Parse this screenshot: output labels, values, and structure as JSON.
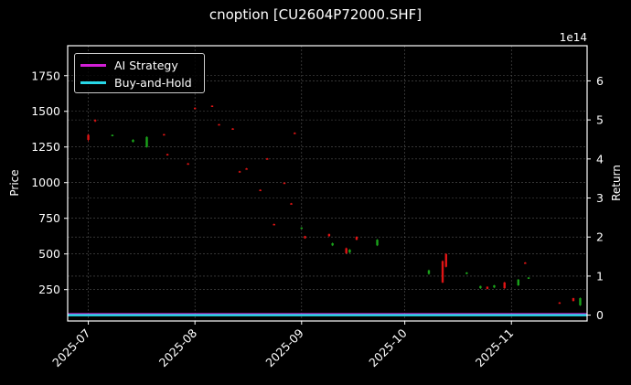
{
  "title": "cnoption [CU2604P72000.SHF]",
  "colors": {
    "background": "#000000",
    "ai_strategy": "#d21fd6",
    "buy_and_hold": "#28d8e8",
    "up_candle": "#1aa31a",
    "down_candle": "#e01414",
    "grid": "#555555",
    "frame": "#ffffff"
  },
  "legend": {
    "items": [
      {
        "label": "AI Strategy",
        "color": "#d21fd6"
      },
      {
        "label": "Buy-and-Hold",
        "color": "#28d8e8"
      }
    ]
  },
  "axes": {
    "left_label": "Price",
    "right_label": "Return",
    "right_exponent": "1e14"
  },
  "chart_data": {
    "type": "candlestick+line",
    "title": "cnoption [CU2604P72000.SHF]",
    "xlabel": "",
    "ylabel": "Price",
    "y2label": "Return",
    "y2_offset_text": "1e14",
    "x_tick_labels": [
      "2025-07",
      "2025-08",
      "2025-09",
      "2025-10",
      "2025-11"
    ],
    "y_ticks": [
      250,
      500,
      750,
      1000,
      1250,
      1500,
      1750
    ],
    "y2_ticks": [
      0,
      1,
      2,
      3,
      4,
      5,
      6
    ],
    "ylim": [
      30,
      1960
    ],
    "y2lim": [
      -0.15,
      6.9
    ],
    "grid": true,
    "legend_position": "upper left",
    "candles": [
      {
        "date": "2025-07-01",
        "open": 1335,
        "close": 1300,
        "high": 1340,
        "low": 1290,
        "dir": "down"
      },
      {
        "date": "2025-07-03",
        "open": 1440,
        "close": 1430,
        "high": 1445,
        "low": 1425,
        "dir": "down"
      },
      {
        "date": "2025-07-08",
        "open": 1330,
        "close": 1335,
        "high": 1338,
        "low": 1328,
        "dir": "up"
      },
      {
        "date": "2025-07-14",
        "open": 1285,
        "close": 1300,
        "high": 1305,
        "low": 1282,
        "dir": "up"
      },
      {
        "date": "2025-07-18",
        "open": 1250,
        "close": 1320,
        "high": 1325,
        "low": 1245,
        "dir": "up"
      },
      {
        "date": "2025-07-23",
        "open": 1340,
        "close": 1335,
        "high": 1342,
        "low": 1332,
        "dir": "down"
      },
      {
        "date": "2025-07-24",
        "open": 1200,
        "close": 1195,
        "high": 1203,
        "low": 1192,
        "dir": "down"
      },
      {
        "date": "2025-07-30",
        "open": 1135,
        "close": 1130,
        "high": 1138,
        "low": 1128,
        "dir": "down"
      },
      {
        "date": "2025-08-01",
        "open": 1525,
        "close": 1520,
        "high": 1528,
        "low": 1517,
        "dir": "down"
      },
      {
        "date": "2025-08-06",
        "open": 1540,
        "close": 1535,
        "high": 1542,
        "low": 1532,
        "dir": "down"
      },
      {
        "date": "2025-08-08",
        "open": 1410,
        "close": 1405,
        "high": 1412,
        "low": 1402,
        "dir": "down"
      },
      {
        "date": "2025-08-12",
        "open": 1380,
        "close": 1375,
        "high": 1382,
        "low": 1372,
        "dir": "down"
      },
      {
        "date": "2025-08-14",
        "open": 1080,
        "close": 1075,
        "high": 1083,
        "low": 1072,
        "dir": "down"
      },
      {
        "date": "2025-08-16",
        "open": 1100,
        "close": 1095,
        "high": 1103,
        "low": 1092,
        "dir": "down"
      },
      {
        "date": "2025-08-20",
        "open": 950,
        "close": 945,
        "high": 953,
        "low": 942,
        "dir": "down"
      },
      {
        "date": "2025-08-22",
        "open": 1170,
        "close": 1165,
        "high": 1173,
        "low": 1162,
        "dir": "down"
      },
      {
        "date": "2025-08-24",
        "open": 710,
        "close": 705,
        "high": 713,
        "low": 702,
        "dir": "down"
      },
      {
        "date": "2025-08-27",
        "open": 1000,
        "close": 995,
        "high": 1003,
        "low": 992,
        "dir": "down"
      },
      {
        "date": "2025-08-29",
        "open": 855,
        "close": 850,
        "high": 858,
        "low": 847,
        "dir": "down"
      },
      {
        "date": "2025-08-30",
        "open": 1350,
        "close": 1345,
        "high": 1353,
        "low": 1342,
        "dir": "down"
      },
      {
        "date": "2025-09-01",
        "open": 680,
        "close": 685,
        "high": 688,
        "low": 677,
        "dir": "up"
      },
      {
        "date": "2025-09-02",
        "open": 625,
        "close": 610,
        "high": 628,
        "low": 606,
        "dir": "down"
      },
      {
        "date": "2025-09-09",
        "open": 640,
        "close": 625,
        "high": 642,
        "low": 620,
        "dir": "down"
      },
      {
        "date": "2025-09-10",
        "open": 560,
        "close": 575,
        "high": 580,
        "low": 555,
        "dir": "up"
      },
      {
        "date": "2025-09-14",
        "open": 540,
        "close": 505,
        "high": 545,
        "low": 500,
        "dir": "down"
      },
      {
        "date": "2025-09-15",
        "open": 510,
        "close": 530,
        "high": 535,
        "low": 505,
        "dir": "up"
      },
      {
        "date": "2025-09-17",
        "open": 620,
        "close": 600,
        "high": 625,
        "low": 595,
        "dir": "down"
      },
      {
        "date": "2025-09-23",
        "open": 560,
        "close": 600,
        "high": 605,
        "low": 555,
        "dir": "up"
      },
      {
        "date": "2025-10-08",
        "open": 360,
        "close": 385,
        "high": 390,
        "low": 355,
        "dir": "up"
      },
      {
        "date": "2025-10-12",
        "open": 450,
        "close": 300,
        "high": 455,
        "low": 295,
        "dir": "down"
      },
      {
        "date": "2025-10-13",
        "open": 500,
        "close": 410,
        "high": 505,
        "low": 405,
        "dir": "down"
      },
      {
        "date": "2025-10-19",
        "open": 360,
        "close": 370,
        "high": 373,
        "low": 357,
        "dir": "up"
      },
      {
        "date": "2025-10-23",
        "open": 260,
        "close": 275,
        "high": 278,
        "low": 255,
        "dir": "up"
      },
      {
        "date": "2025-10-25",
        "open": 270,
        "close": 255,
        "high": 273,
        "low": 252,
        "dir": "down"
      },
      {
        "date": "2025-10-27",
        "open": 265,
        "close": 280,
        "high": 283,
        "low": 260,
        "dir": "up"
      },
      {
        "date": "2025-10-30",
        "open": 300,
        "close": 260,
        "high": 305,
        "low": 255,
        "dir": "down"
      },
      {
        "date": "2025-11-03",
        "open": 280,
        "close": 320,
        "high": 325,
        "low": 275,
        "dir": "up"
      },
      {
        "date": "2025-11-05",
        "open": 440,
        "close": 435,
        "high": 443,
        "low": 432,
        "dir": "down"
      },
      {
        "date": "2025-11-06",
        "open": 330,
        "close": 335,
        "high": 338,
        "low": 327,
        "dir": "up"
      },
      {
        "date": "2025-11-15",
        "open": 160,
        "close": 155,
        "high": 163,
        "low": 152,
        "dir": "down"
      },
      {
        "date": "2025-11-19",
        "open": 190,
        "close": 170,
        "high": 193,
        "low": 167,
        "dir": "down"
      },
      {
        "date": "2025-11-21",
        "open": 140,
        "close": 190,
        "high": 195,
        "low": 135,
        "dir": "up"
      }
    ],
    "series": [
      {
        "name": "AI Strategy",
        "axis": "right",
        "color": "#d21fd6",
        "values_note": "flat near 0 (hidden under Buy-and-Hold)",
        "start": 0.0,
        "end": 0.0
      },
      {
        "name": "Buy-and-Hold",
        "axis": "right",
        "color": "#28d8e8",
        "start": 0.0,
        "end": 0.0
      }
    ],
    "x_range": [
      "2025-06-25",
      "2025-11-23"
    ]
  }
}
